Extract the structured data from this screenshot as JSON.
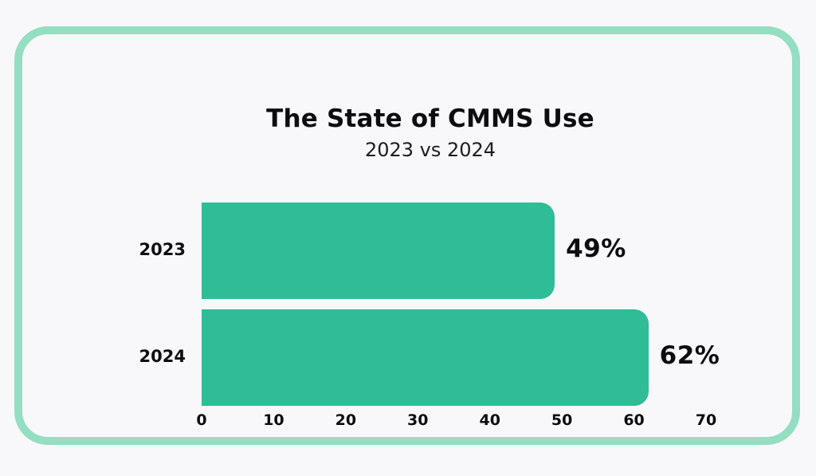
{
  "chart_data": {
    "type": "bar",
    "orientation": "horizontal",
    "title": "The State of CMMS Use",
    "subtitle": "2023 vs 2024",
    "categories": [
      "2023",
      "2024"
    ],
    "values": [
      49,
      62
    ],
    "value_labels": [
      "49%",
      "62%"
    ],
    "xticks": [
      0,
      10,
      20,
      30,
      40,
      50,
      60,
      70
    ],
    "xlim": [
      0,
      70
    ],
    "grid": false,
    "legend": "none",
    "bar_color": "#2ebd97",
    "card_border_color": "#94dec2",
    "background_color": "#f8f8fa",
    "text_color": "#0d0d0f"
  }
}
